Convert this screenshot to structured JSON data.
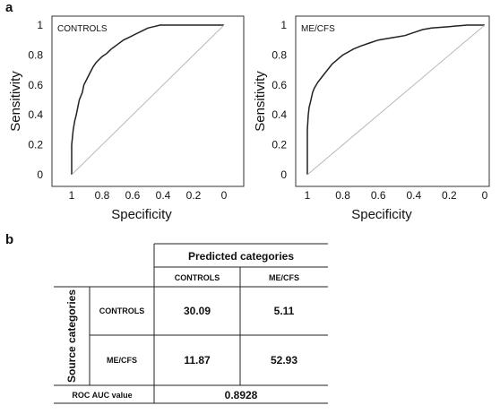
{
  "panel_a_letter": "a",
  "panel_b_letter": "b",
  "chart_data": [
    {
      "type": "line",
      "title": "CONTROLS",
      "xlabel": "Specificity",
      "ylabel": "Sensitivity",
      "xlim": [
        1,
        0
      ],
      "ylim": [
        0,
        1
      ],
      "x_ticks": [
        "1",
        "0.8",
        "0.6",
        "0.4",
        "0.2",
        "0"
      ],
      "y_ticks": [
        "0",
        "0.2",
        "0.4",
        "0.6",
        "0.8",
        "1"
      ],
      "x_tick_values": [
        1,
        0.8,
        0.6,
        0.4,
        0.2,
        0
      ],
      "y_tick_values": [
        0,
        0.2,
        0.4,
        0.6,
        0.8,
        1
      ],
      "series": [
        {
          "x": [
            1.0,
            1.0,
            0.99,
            0.98,
            0.97,
            0.96,
            0.95,
            0.93,
            0.92,
            0.9,
            0.88,
            0.86,
            0.84,
            0.82,
            0.8,
            0.77,
            0.74,
            0.7,
            0.66,
            0.62,
            0.58,
            0.54,
            0.5,
            0.46,
            0.42,
            0.38,
            0.3,
            0.2,
            0.1,
            0.0
          ],
          "y": [
            0.0,
            0.2,
            0.3,
            0.36,
            0.4,
            0.45,
            0.5,
            0.55,
            0.6,
            0.64,
            0.68,
            0.72,
            0.75,
            0.77,
            0.79,
            0.81,
            0.84,
            0.87,
            0.9,
            0.92,
            0.94,
            0.96,
            0.98,
            0.99,
            1.0,
            1.0,
            1.0,
            1.0,
            1.0,
            1.0
          ]
        },
        {
          "x": [
            1.0,
            0.0
          ],
          "y": [
            0.0,
            1.0
          ]
        }
      ]
    },
    {
      "type": "line",
      "title": "ME/CFS",
      "xlabel": "Specificity",
      "ylabel": "Sensitivity",
      "xlim": [
        1,
        0
      ],
      "ylim": [
        0,
        1
      ],
      "x_ticks": [
        "1",
        "0.8",
        "0.6",
        "0.4",
        "0.2",
        "0"
      ],
      "y_ticks": [
        "0",
        "0.2",
        "0.4",
        "0.6",
        "0.8",
        "1"
      ],
      "x_tick_values": [
        1,
        0.8,
        0.6,
        0.4,
        0.2,
        0
      ],
      "y_tick_values": [
        0,
        0.2,
        0.4,
        0.6,
        0.8,
        1
      ],
      "series": [
        {
          "x": [
            1.0,
            1.0,
            0.995,
            0.99,
            0.98,
            0.97,
            0.96,
            0.94,
            0.92,
            0.9,
            0.88,
            0.86,
            0.84,
            0.82,
            0.8,
            0.77,
            0.74,
            0.7,
            0.65,
            0.6,
            0.55,
            0.5,
            0.45,
            0.4,
            0.35,
            0.3,
            0.2,
            0.1,
            0.0
          ],
          "y": [
            0.0,
            0.3,
            0.4,
            0.45,
            0.5,
            0.55,
            0.58,
            0.62,
            0.65,
            0.68,
            0.71,
            0.74,
            0.76,
            0.78,
            0.8,
            0.82,
            0.84,
            0.86,
            0.88,
            0.9,
            0.91,
            0.92,
            0.93,
            0.95,
            0.97,
            0.98,
            0.99,
            1.0,
            1.0
          ]
        },
        {
          "x": [
            1.0,
            0.0
          ],
          "y": [
            0.0,
            1.0
          ]
        }
      ]
    }
  ],
  "table": {
    "predicted_header": "Predicted categories",
    "col_headers": [
      "CONTROLS",
      "ME/CFS"
    ],
    "source_header": "Source categories",
    "rows": [
      {
        "label": "CONTROLS",
        "values": [
          "30.09",
          "5.11"
        ]
      },
      {
        "label": "ME/CFS",
        "values": [
          "11.87",
          "52.93"
        ]
      }
    ],
    "auc_label": "ROC AUC value",
    "auc_value": "0.8928"
  },
  "colors": {
    "curve": "#222222",
    "diagonal": "#b8b8b8",
    "frame": "#333333"
  }
}
